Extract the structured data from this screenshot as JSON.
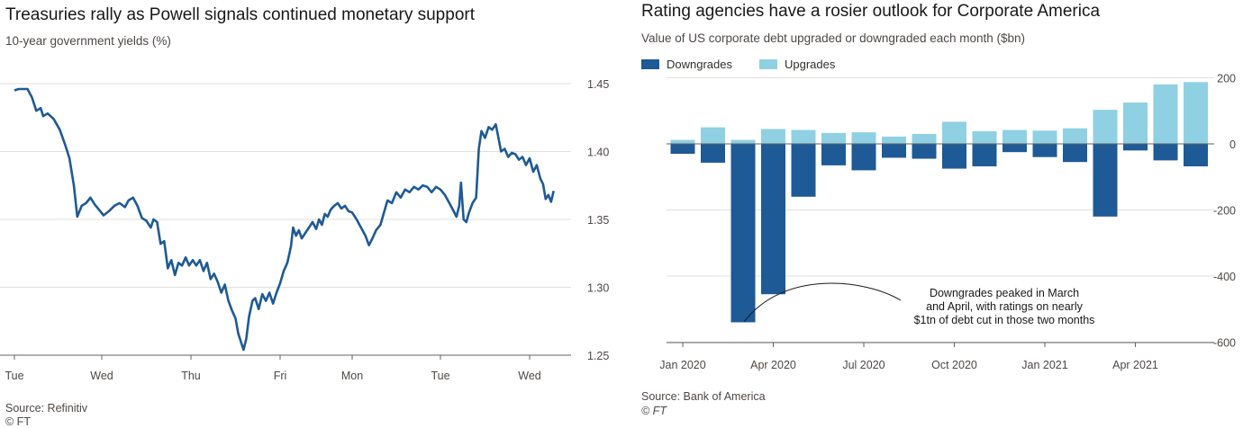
{
  "left": {
    "title": "Treasuries rally as Powell signals continued monetary support",
    "subtitle": "10-year government yields (%)",
    "source": "Source: Refinitiv",
    "footer": "© FT"
  },
  "right": {
    "title": "Rating agencies have a rosier outlook for Corporate America",
    "subtitle": "Value of US corporate debt upgraded or downgraded each month ($bn)",
    "source": "Source: Bank of America",
    "footer": "© FT",
    "annotation": [
      "Downgrades peaked in March",
      "and April, with ratings on nearly",
      "$1tn of debt cut in those two months"
    ]
  },
  "colors": {
    "line": "#1e5a96",
    "downgrades": "#1e5a96",
    "upgrades": "#8fd0e3",
    "grid": "#e3dfdc"
  },
  "chart_data": [
    {
      "type": "line",
      "title": "Treasuries rally as Powell signals continued monetary support",
      "ylabel": "10-year government yields (%)",
      "ylim": [
        1.25,
        1.45
      ],
      "yticks": [
        "1.45",
        "1.40",
        "1.35",
        "1.30",
        "1.25"
      ],
      "xlim": [
        0,
        7.5
      ],
      "xticks": [
        "Tue",
        "Wed",
        "Thu",
        "Fri",
        "Mon",
        "Tue",
        "Wed"
      ],
      "grid": true,
      "series": [
        {
          "values": [
            [
              0.0,
              1.445
            ],
            [
              0.05,
              1.446
            ],
            [
              0.15,
              1.446
            ],
            [
              0.2,
              1.44
            ],
            [
              0.25,
              1.43
            ],
            [
              0.3,
              1.432
            ],
            [
              0.33,
              1.426
            ],
            [
              0.38,
              1.428
            ],
            [
              0.45,
              1.424
            ],
            [
              0.52,
              1.416
            ],
            [
              0.58,
              1.405
            ],
            [
              0.63,
              1.395
            ],
            [
              0.68,
              1.375
            ],
            [
              0.72,
              1.352
            ],
            [
              0.77,
              1.36
            ],
            [
              0.82,
              1.362
            ],
            [
              0.87,
              1.366
            ],
            [
              0.92,
              1.361
            ],
            [
              0.97,
              1.357
            ],
            [
              1.02,
              1.353
            ],
            [
              1.08,
              1.356
            ],
            [
              1.14,
              1.36
            ],
            [
              1.2,
              1.362
            ],
            [
              1.26,
              1.359
            ],
            [
              1.3,
              1.364
            ],
            [
              1.35,
              1.366
            ],
            [
              1.4,
              1.36
            ],
            [
              1.45,
              1.351
            ],
            [
              1.5,
              1.349
            ],
            [
              1.55,
              1.344
            ],
            [
              1.58,
              1.35
            ],
            [
              1.62,
              1.348
            ],
            [
              1.66,
              1.332
            ],
            [
              1.7,
              1.334
            ],
            [
              1.74,
              1.314
            ],
            [
              1.78,
              1.32
            ],
            [
              1.82,
              1.309
            ],
            [
              1.86,
              1.318
            ],
            [
              1.9,
              1.316
            ],
            [
              1.94,
              1.322
            ],
            [
              1.98,
              1.316
            ],
            [
              2.02,
              1.32
            ],
            [
              2.06,
              1.316
            ],
            [
              2.1,
              1.32
            ],
            [
              2.14,
              1.312
            ],
            [
              2.18,
              1.318
            ],
            [
              2.22,
              1.306
            ],
            [
              2.26,
              1.31
            ],
            [
              2.3,
              1.304
            ],
            [
              2.34,
              1.296
            ],
            [
              2.38,
              1.302
            ],
            [
              2.42,
              1.29
            ],
            [
              2.46,
              1.283
            ],
            [
              2.5,
              1.277
            ],
            [
              2.53,
              1.266
            ],
            [
              2.56,
              1.26
            ],
            [
              2.59,
              1.254
            ],
            [
              2.62,
              1.262
            ],
            [
              2.65,
              1.278
            ],
            [
              2.69,
              1.29
            ],
            [
              2.72,
              1.292
            ],
            [
              2.76,
              1.284
            ],
            [
              2.8,
              1.295
            ],
            [
              2.84,
              1.29
            ],
            [
              2.88,
              1.296
            ],
            [
              2.92,
              1.288
            ],
            [
              2.96,
              1.296
            ],
            [
              3.0,
              1.303
            ],
            [
              3.05,
              1.312
            ],
            [
              3.1,
              1.318
            ],
            [
              3.15,
              1.33
            ],
            [
              3.18,
              1.344
            ],
            [
              3.22,
              1.338
            ],
            [
              3.26,
              1.342
            ],
            [
              3.3,
              1.336
            ],
            [
              3.35,
              1.34
            ],
            [
              3.4,
              1.344
            ],
            [
              3.45,
              1.348
            ],
            [
              3.5,
              1.343
            ],
            [
              3.54,
              1.35
            ],
            [
              3.58,
              1.346
            ],
            [
              3.62,
              1.354
            ],
            [
              3.66,
              1.352
            ],
            [
              3.7,
              1.357
            ],
            [
              3.75,
              1.36
            ],
            [
              3.8,
              1.362
            ],
            [
              3.85,
              1.358
            ],
            [
              3.9,
              1.36
            ],
            [
              3.95,
              1.356
            ],
            [
              4.0,
              1.355
            ],
            [
              4.05,
              1.35
            ],
            [
              4.1,
              1.344
            ],
            [
              4.15,
              1.338
            ],
            [
              4.19,
              1.331
            ],
            [
              4.23,
              1.336
            ],
            [
              4.27,
              1.342
            ],
            [
              4.32,
              1.346
            ],
            [
              4.36,
              1.355
            ],
            [
              4.4,
              1.364
            ],
            [
              4.45,
              1.362
            ],
            [
              4.5,
              1.37
            ],
            [
              4.55,
              1.366
            ],
            [
              4.6,
              1.372
            ],
            [
              4.65,
              1.37
            ],
            [
              4.7,
              1.374
            ],
            [
              4.75,
              1.372
            ],
            [
              4.8,
              1.375
            ],
            [
              4.85,
              1.374
            ],
            [
              4.9,
              1.37
            ],
            [
              4.95,
              1.374
            ],
            [
              5.0,
              1.372
            ],
            [
              5.05,
              1.368
            ],
            [
              5.1,
              1.362
            ],
            [
              5.14,
              1.357
            ],
            [
              5.18,
              1.352
            ],
            [
              5.21,
              1.36
            ],
            [
              5.23,
              1.377
            ],
            [
              5.26,
              1.35
            ],
            [
              5.29,
              1.348
            ],
            [
              5.32,
              1.355
            ],
            [
              5.36,
              1.362
            ],
            [
              5.4,
              1.366
            ],
            [
              5.43,
              1.402
            ],
            [
              5.46,
              1.415
            ],
            [
              5.5,
              1.41
            ],
            [
              5.54,
              1.418
            ],
            [
              5.58,
              1.416
            ],
            [
              5.62,
              1.42
            ],
            [
              5.65,
              1.41
            ],
            [
              5.68,
              1.4
            ],
            [
              5.72,
              1.402
            ],
            [
              5.76,
              1.396
            ],
            [
              5.8,
              1.399
            ],
            [
              5.84,
              1.398
            ],
            [
              5.88,
              1.394
            ],
            [
              5.92,
              1.396
            ],
            [
              5.96,
              1.39
            ],
            [
              6.0,
              1.395
            ],
            [
              6.04,
              1.385
            ],
            [
              6.08,
              1.39
            ],
            [
              6.12,
              1.38
            ],
            [
              6.15,
              1.376
            ],
            [
              6.18,
              1.365
            ],
            [
              6.21,
              1.368
            ],
            [
              6.24,
              1.363
            ],
            [
              6.27,
              1.371
            ]
          ]
        }
      ]
    },
    {
      "type": "bar",
      "title": "Rating agencies have a rosier outlook for Corporate America",
      "ylabel": "Value of US corporate debt upgraded or downgraded each month ($bn)",
      "ylim": [
        -600,
        200
      ],
      "yticks": [
        "200",
        "0",
        "-200",
        "-400",
        "-600"
      ],
      "xticks": [
        "Jan 2020",
        "Apr 2020",
        "Jul 2020",
        "Oct 2020",
        "Jan 2021",
        "Apr 2021"
      ],
      "legend": "top-left",
      "categories": [
        "Jan 2020",
        "Feb 2020",
        "Mar 2020",
        "Apr 2020",
        "May 2020",
        "Jun 2020",
        "Jul 2020",
        "Aug 2020",
        "Sep 2020",
        "Oct 2020",
        "Nov 2020",
        "Dec 2020",
        "Jan 2021",
        "Feb 2021",
        "Mar 2021",
        "Apr 2021",
        "May 2021",
        "Jun 2021"
      ],
      "series": [
        {
          "name": "Downgrades",
          "values": [
            -30,
            -57,
            -540,
            -455,
            -160,
            -65,
            -80,
            -42,
            -45,
            -75,
            -68,
            -25,
            -40,
            -55,
            -220,
            -20,
            -50,
            -68
          ]
        },
        {
          "name": "Upgrades",
          "values": [
            12,
            50,
            12,
            45,
            42,
            33,
            35,
            22,
            30,
            67,
            38,
            42,
            40,
            47,
            103,
            125,
            180,
            187
          ]
        }
      ]
    }
  ]
}
